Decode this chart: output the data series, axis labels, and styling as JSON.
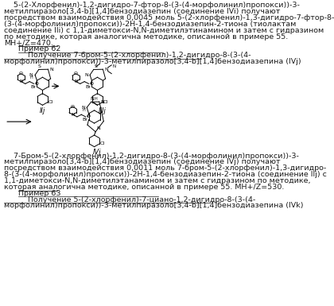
{
  "bg_color": "#ffffff",
  "text_color": "#1a1a1a",
  "font_size_body": 6.8,
  "top_lines": [
    "5-(2-Хлорфенил)-1,2-дигидро-7-фтор-8-(3-(4-морфолинил)пропокси))-3-",
    "метилпиразоло[3,4-b][1,4]бензодиазепин (соединение IVi) получают",
    "посредством взаимодействия 0,0045 моль 5-(2-хлорфенил)-1,3-дигидро-7-фтор-8-",
    "(3-(4-морфолинил)пропокси))-2H-1,4-бензодиазепин-2-тиона (тиолактам",
    "соединение IIi) с 1,1-диметокси-N,N-диметилэтинамином и затем с гидразином",
    "по методике, которая аналогична методике, описанной в примере 55.",
    "MH+/Z=470."
  ],
  "ex62_header": "Пример 62",
  "ex62_sub1": "Получение 7-бром-5-(2-хлорфенил)-1,2-дигидро-8-(3-(4-",
  "ex62_sub2": "морфолинил)пропокси))-3-метилпиразоло[3,4-b][1,4]бензодиазепина (IVj)",
  "bottom_lines": [
    "    7-Бром-5-(2-хлорфенил)-1,2-дигидро-8-(3-(4-морфолинил)пропокси))-3-",
    "метилпиразоло[3,4-b][1,4]бензодиазепин (соединение IVj) получают",
    "посредством взаимодействия 0,0011 моль 7-бром-5-(2-хлорфенил)-1,3-дигидро-",
    "8-(3-(4-морфолинил)пропокси))-2H-1,4-бензодиазепин-2-тиона (соединение IIj) с",
    "1,1-диметокси-N,N-диметилэтанамином и затем с гидразином по методике,",
    "которая аналогична методике, описанной в примере 55. MH+/Z=530."
  ],
  "ex63_header": "Пример 63",
  "ex63_sub1": "Получение 5-(2-хлорфенил)-7-циано-1,2-дигидро-8-(3-(4-",
  "ex63_sub2": "морфолинил)пропокси))-3-метилпиразоло[3,4-b][1,4]бензодиазепина (IVk)"
}
